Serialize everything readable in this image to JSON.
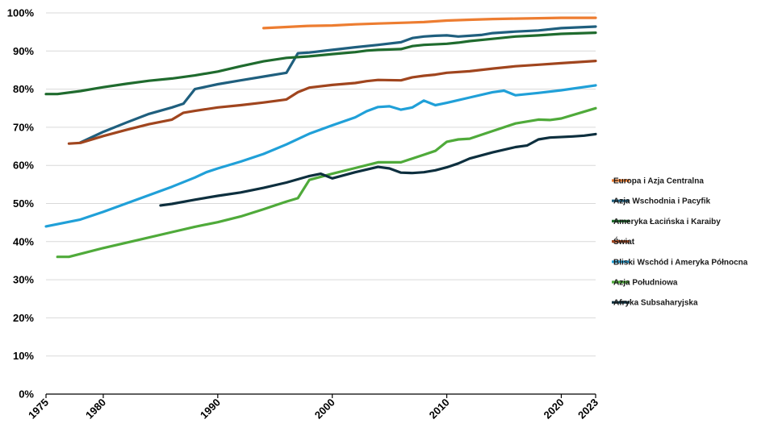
{
  "chart_data": {
    "type": "line",
    "title": "",
    "xlabel": "",
    "ylabel": "",
    "xlim": [
      1975,
      2023
    ],
    "ylim": [
      0,
      100
    ],
    "x_ticks": [
      1975,
      1980,
      1990,
      2000,
      2010,
      2020,
      2023
    ],
    "x_tick_labels": [
      "1975",
      "1980",
      "1990",
      "2000",
      "2010",
      "2020",
      "2023"
    ],
    "y_ticks": [
      0,
      10,
      20,
      30,
      40,
      50,
      60,
      70,
      80,
      90,
      100
    ],
    "y_tick_labels": [
      "0%",
      "10%",
      "20%",
      "30%",
      "40%",
      "50%",
      "60%",
      "70%",
      "80%",
      "90%",
      "100%"
    ],
    "grid": "horizontal",
    "legend_position": "right",
    "series": [
      {
        "name": "Europa i Azja Centralna",
        "color": "#ed7d31",
        "x": [
          1994,
          1996,
          1998,
          2000,
          2002,
          2004,
          2006,
          2008,
          2010,
          2012,
          2014,
          2016,
          2018,
          2020,
          2023
        ],
        "values": [
          96.0,
          96.3,
          96.6,
          96.7,
          97.0,
          97.2,
          97.4,
          97.6,
          98.0,
          98.2,
          98.4,
          98.5,
          98.6,
          98.7,
          98.7
        ]
      },
      {
        "name": "Azja Wschodnia i Pacyfik",
        "color": "#1f5f7e",
        "x": [
          1978,
          1980,
          1982,
          1984,
          1986,
          1987,
          1988,
          1990,
          1992,
          1994,
          1996,
          1997,
          1998,
          2000,
          2002,
          2004,
          2006,
          2007,
          2008,
          2009,
          2010,
          2011,
          2012,
          2013,
          2014,
          2016,
          2018,
          2020,
          2023
        ],
        "values": [
          66.0,
          68.8,
          71.2,
          73.5,
          75.2,
          76.2,
          80.0,
          81.3,
          82.3,
          83.3,
          84.3,
          89.4,
          89.6,
          90.3,
          91.0,
          91.6,
          92.3,
          93.4,
          93.8,
          94.0,
          94.1,
          93.8,
          94.0,
          94.2,
          94.7,
          95.1,
          95.4,
          96.0,
          96.4
        ]
      },
      {
        "name": "Ameryka Łacińska i Karaiby",
        "color": "#1f6b2e",
        "x": [
          1975,
          1976,
          1978,
          1980,
          1982,
          1984,
          1986,
          1988,
          1990,
          1992,
          1994,
          1996,
          1998,
          2000,
          2002,
          2003,
          2004,
          2006,
          2007,
          2008,
          2010,
          2011,
          2012,
          2014,
          2016,
          2018,
          2020,
          2023
        ],
        "values": [
          78.7,
          78.7,
          79.5,
          80.5,
          81.4,
          82.2,
          82.8,
          83.6,
          84.6,
          86.0,
          87.3,
          88.2,
          88.6,
          89.2,
          89.7,
          90.1,
          90.3,
          90.5,
          91.3,
          91.6,
          91.9,
          92.2,
          92.6,
          93.2,
          93.8,
          94.1,
          94.5,
          94.8
        ]
      },
      {
        "name": "Świat",
        "color": "#a0451e",
        "x": [
          1977,
          1978,
          1980,
          1982,
          1984,
          1986,
          1987,
          1988,
          1990,
          1992,
          1994,
          1996,
          1997,
          1998,
          2000,
          2002,
          2003,
          2004,
          2006,
          2007,
          2008,
          2009,
          2010,
          2012,
          2014,
          2016,
          2018,
          2020,
          2023
        ],
        "values": [
          65.7,
          65.9,
          67.7,
          69.3,
          70.8,
          72.0,
          73.8,
          74.3,
          75.2,
          75.8,
          76.5,
          77.3,
          79.2,
          80.4,
          81.1,
          81.6,
          82.1,
          82.4,
          82.3,
          83.1,
          83.5,
          83.8,
          84.3,
          84.7,
          85.4,
          86.0,
          86.4,
          86.8,
          87.4
        ]
      },
      {
        "name": "Bliski Wschód i Ameryka Północna",
        "color": "#20a0d8",
        "x": [
          1975,
          1978,
          1980,
          1982,
          1984,
          1986,
          1988,
          1989,
          1990,
          1992,
          1994,
          1996,
          1998,
          2000,
          2002,
          2003,
          2004,
          2005,
          2006,
          2007,
          2008,
          2009,
          2010,
          2012,
          2014,
          2015,
          2016,
          2018,
          2020,
          2023
        ],
        "values": [
          44.0,
          45.8,
          47.8,
          50.0,
          52.2,
          54.4,
          56.8,
          58.2,
          59.2,
          61.0,
          63.0,
          65.5,
          68.3,
          70.5,
          72.6,
          74.2,
          75.3,
          75.5,
          74.6,
          75.2,
          77.0,
          75.8,
          76.4,
          77.8,
          79.2,
          79.6,
          78.4,
          79.0,
          79.7,
          81.0
        ]
      },
      {
        "name": "Azja Południowa",
        "color": "#4faa3a",
        "x": [
          1976,
          1977,
          1980,
          1983,
          1986,
          1988,
          1990,
          1992,
          1994,
          1996,
          1997,
          1998,
          2000,
          2002,
          2004,
          2006,
          2008,
          2009,
          2010,
          2011,
          2012,
          2014,
          2016,
          2018,
          2019,
          2020,
          2023
        ],
        "values": [
          36.0,
          36.0,
          38.3,
          40.4,
          42.5,
          43.9,
          45.1,
          46.6,
          48.5,
          50.5,
          51.4,
          56.2,
          57.8,
          59.3,
          60.8,
          60.8,
          62.8,
          63.8,
          66.2,
          66.8,
          67.0,
          69.0,
          71.0,
          72.0,
          71.9,
          72.3,
          75.0
        ]
      },
      {
        "name": "Afryka Subsaharyjska",
        "color": "#0d2f3e",
        "x": [
          1985,
          1986,
          1988,
          1990,
          1992,
          1994,
          1996,
          1998,
          1999,
          2000,
          2002,
          2004,
          2005,
          2006,
          2007,
          2008,
          2009,
          2010,
          2011,
          2012,
          2014,
          2016,
          2017,
          2018,
          2019,
          2021,
          2022,
          2023
        ],
        "values": [
          49.5,
          49.9,
          51.0,
          52.0,
          52.9,
          54.1,
          55.5,
          57.2,
          57.8,
          56.6,
          58.2,
          59.6,
          59.2,
          58.1,
          58.0,
          58.2,
          58.7,
          59.5,
          60.5,
          61.8,
          63.4,
          64.8,
          65.2,
          66.8,
          67.3,
          67.6,
          67.8,
          68.2
        ]
      }
    ]
  }
}
